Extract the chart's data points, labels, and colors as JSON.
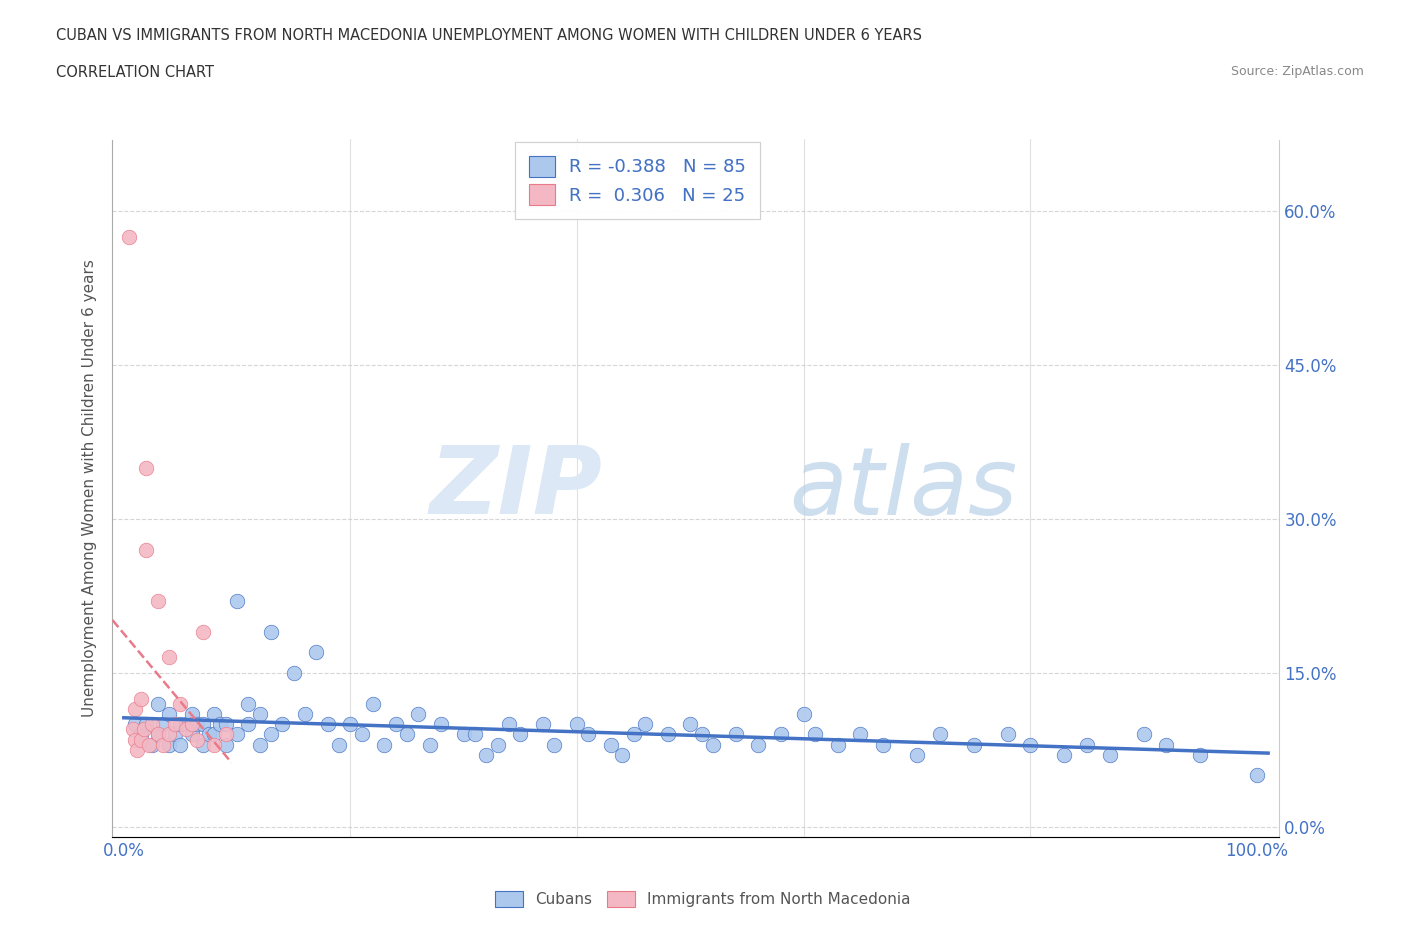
{
  "title_line1": "CUBAN VS IMMIGRANTS FROM NORTH MACEDONIA UNEMPLOYMENT AMONG WOMEN WITH CHILDREN UNDER 6 YEARS",
  "title_line2": "CORRELATION CHART",
  "source": "Source: ZipAtlas.com",
  "ylabel": "Unemployment Among Women with Children Under 6 years",
  "xlim": [
    -0.01,
    1.02
  ],
  "ylim": [
    -0.01,
    0.67
  ],
  "right_yticks": [
    0.0,
    0.15,
    0.3,
    0.45,
    0.6
  ],
  "right_yticklabels": [
    "0.0%",
    "15.0%",
    "30.0%",
    "45.0%",
    "60.0%"
  ],
  "watermark_zip": "ZIP",
  "watermark_atlas": "atlas",
  "cubans_R": "-0.388",
  "cubans_N": "85",
  "macedonia_R": "0.306",
  "macedonia_N": "25",
  "cubans_color": "#adc8ed",
  "macedonia_color": "#f4b8c4",
  "trendline_cubans_color": "#4472c4",
  "trendline_macedonia_color": "#e87a8a",
  "background_color": "#ffffff",
  "grid_color": "#cccccc",
  "cubans_x": [
    0.01,
    0.015,
    0.02,
    0.025,
    0.03,
    0.03,
    0.035,
    0.04,
    0.04,
    0.045,
    0.05,
    0.05,
    0.055,
    0.06,
    0.06,
    0.065,
    0.07,
    0.07,
    0.075,
    0.08,
    0.08,
    0.085,
    0.09,
    0.09,
    0.1,
    0.1,
    0.11,
    0.11,
    0.12,
    0.12,
    0.13,
    0.13,
    0.14,
    0.15,
    0.16,
    0.17,
    0.18,
    0.19,
    0.2,
    0.21,
    0.22,
    0.23,
    0.24,
    0.25,
    0.26,
    0.27,
    0.28,
    0.3,
    0.31,
    0.32,
    0.33,
    0.34,
    0.35,
    0.37,
    0.38,
    0.4,
    0.41,
    0.43,
    0.44,
    0.45,
    0.46,
    0.48,
    0.5,
    0.51,
    0.52,
    0.54,
    0.56,
    0.58,
    0.6,
    0.61,
    0.63,
    0.65,
    0.67,
    0.7,
    0.72,
    0.75,
    0.78,
    0.8,
    0.83,
    0.85,
    0.87,
    0.9,
    0.92,
    0.95,
    1.0
  ],
  "cubans_y": [
    0.1,
    0.09,
    0.1,
    0.08,
    0.09,
    0.12,
    0.1,
    0.08,
    0.11,
    0.09,
    0.1,
    0.08,
    0.1,
    0.09,
    0.11,
    0.1,
    0.08,
    0.1,
    0.09,
    0.09,
    0.11,
    0.1,
    0.08,
    0.1,
    0.22,
    0.09,
    0.1,
    0.12,
    0.11,
    0.08,
    0.19,
    0.09,
    0.1,
    0.15,
    0.11,
    0.17,
    0.1,
    0.08,
    0.1,
    0.09,
    0.12,
    0.08,
    0.1,
    0.09,
    0.11,
    0.08,
    0.1,
    0.09,
    0.09,
    0.07,
    0.08,
    0.1,
    0.09,
    0.1,
    0.08,
    0.1,
    0.09,
    0.08,
    0.07,
    0.09,
    0.1,
    0.09,
    0.1,
    0.09,
    0.08,
    0.09,
    0.08,
    0.09,
    0.11,
    0.09,
    0.08,
    0.09,
    0.08,
    0.07,
    0.09,
    0.08,
    0.09,
    0.08,
    0.07,
    0.08,
    0.07,
    0.09,
    0.08,
    0.07,
    0.05
  ],
  "macedonia_x": [
    0.005,
    0.008,
    0.01,
    0.01,
    0.012,
    0.015,
    0.015,
    0.018,
    0.02,
    0.02,
    0.022,
    0.025,
    0.03,
    0.03,
    0.035,
    0.04,
    0.04,
    0.045,
    0.05,
    0.055,
    0.06,
    0.065,
    0.07,
    0.08,
    0.09
  ],
  "macedonia_y": [
    0.575,
    0.095,
    0.115,
    0.085,
    0.075,
    0.125,
    0.085,
    0.095,
    0.35,
    0.27,
    0.08,
    0.1,
    0.22,
    0.09,
    0.08,
    0.165,
    0.09,
    0.1,
    0.12,
    0.095,
    0.1,
    0.085,
    0.19,
    0.08,
    0.09
  ]
}
